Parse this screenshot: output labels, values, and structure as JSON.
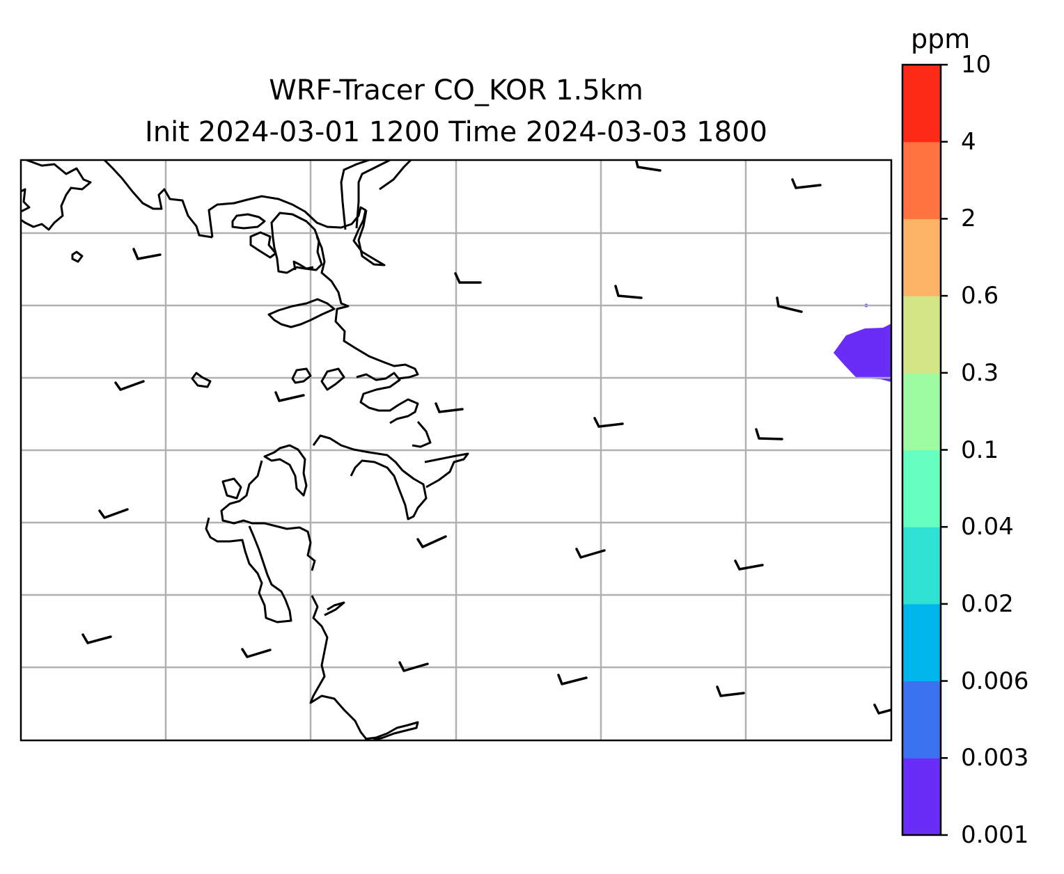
{
  "title": {
    "line1": "WRF-Tracer CO_KOR 1.5km",
    "line2": "Init 2024-03-01 1200 Time 2024-03-03 1800"
  },
  "colorbar": {
    "unit": "ppm",
    "levels": [
      "0.001",
      "0.003",
      "0.006",
      "0.02",
      "0.04",
      "0.1",
      "0.3",
      "0.6",
      "2",
      "4",
      "10"
    ],
    "colors": [
      "#6a2cf7",
      "#3b72f0",
      "#00b4ec",
      "#2fe0d5",
      "#66ffbf",
      "#9dfca2",
      "#d2e587",
      "#fcb366",
      "#ff7340",
      "#ff2a16"
    ]
  },
  "map": {
    "background": "#ffffff",
    "gridline_color": "#b0b0b0",
    "coastline_color": "#000000",
    "tracer_color": "#6a2cf7",
    "tracer_level": "0.001"
  }
}
